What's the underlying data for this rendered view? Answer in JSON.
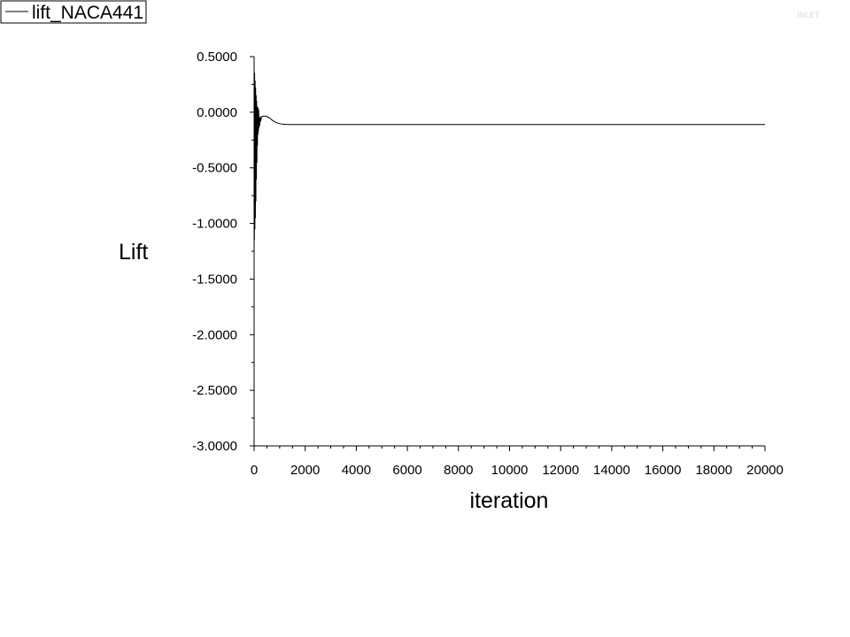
{
  "legend": {
    "label": "lift_NACA441"
  },
  "watermark": {
    "text": "INLET"
  },
  "chart_data": {
    "type": "line",
    "title": "",
    "xlabel": "iteration",
    "ylabel": "Lift",
    "xlim": [
      0,
      20000
    ],
    "ylim": [
      -3.0,
      0.5
    ],
    "xticks": [
      0,
      2000,
      4000,
      6000,
      8000,
      10000,
      12000,
      14000,
      16000,
      18000,
      20000
    ],
    "xtick_labels": [
      "0",
      "2000",
      "4000",
      "6000",
      "8000",
      "10000",
      "12000",
      "14000",
      "16000",
      "18000",
      "20000"
    ],
    "yticks": [
      0.5,
      0.0,
      -0.5,
      -1.0,
      -1.5,
      -2.0,
      -2.5,
      -3.0
    ],
    "ytick_labels": [
      "0.5000",
      "0.0000",
      "-0.5000",
      "-1.0000",
      "-1.5000",
      "-2.0000",
      "-2.5000",
      "-3.0000"
    ],
    "grid": false,
    "legend_position": "top-left",
    "series": [
      {
        "name": "lift_NACA441",
        "color": "#000000",
        "x": [
          0,
          10,
          20,
          30,
          40,
          50,
          60,
          70,
          80,
          90,
          100,
          110,
          120,
          130,
          140,
          150,
          160,
          170,
          180,
          190,
          200,
          220,
          240,
          260,
          280,
          300,
          350,
          400,
          450,
          500,
          550,
          600,
          650,
          700,
          800,
          900,
          1000,
          1100,
          1200,
          1300,
          1400,
          1500,
          2000,
          3000,
          5000,
          8000,
          12000,
          16000,
          20000
        ],
        "y": [
          0.42,
          -1.15,
          0.35,
          -1.05,
          0.28,
          -0.95,
          0.22,
          -0.8,
          0.15,
          -0.6,
          0.1,
          -0.45,
          0.05,
          -0.3,
          0.02,
          -0.2,
          0.04,
          -0.17,
          0.02,
          -0.14,
          -0.05,
          -0.12,
          -0.04,
          -0.08,
          -0.05,
          -0.04,
          -0.035,
          -0.035,
          -0.035,
          -0.04,
          -0.045,
          -0.05,
          -0.06,
          -0.07,
          -0.085,
          -0.095,
          -0.103,
          -0.107,
          -0.109,
          -0.11,
          -0.11,
          -0.11,
          -0.11,
          -0.11,
          -0.11,
          -0.11,
          -0.11,
          -0.11,
          -0.11
        ]
      }
    ]
  }
}
